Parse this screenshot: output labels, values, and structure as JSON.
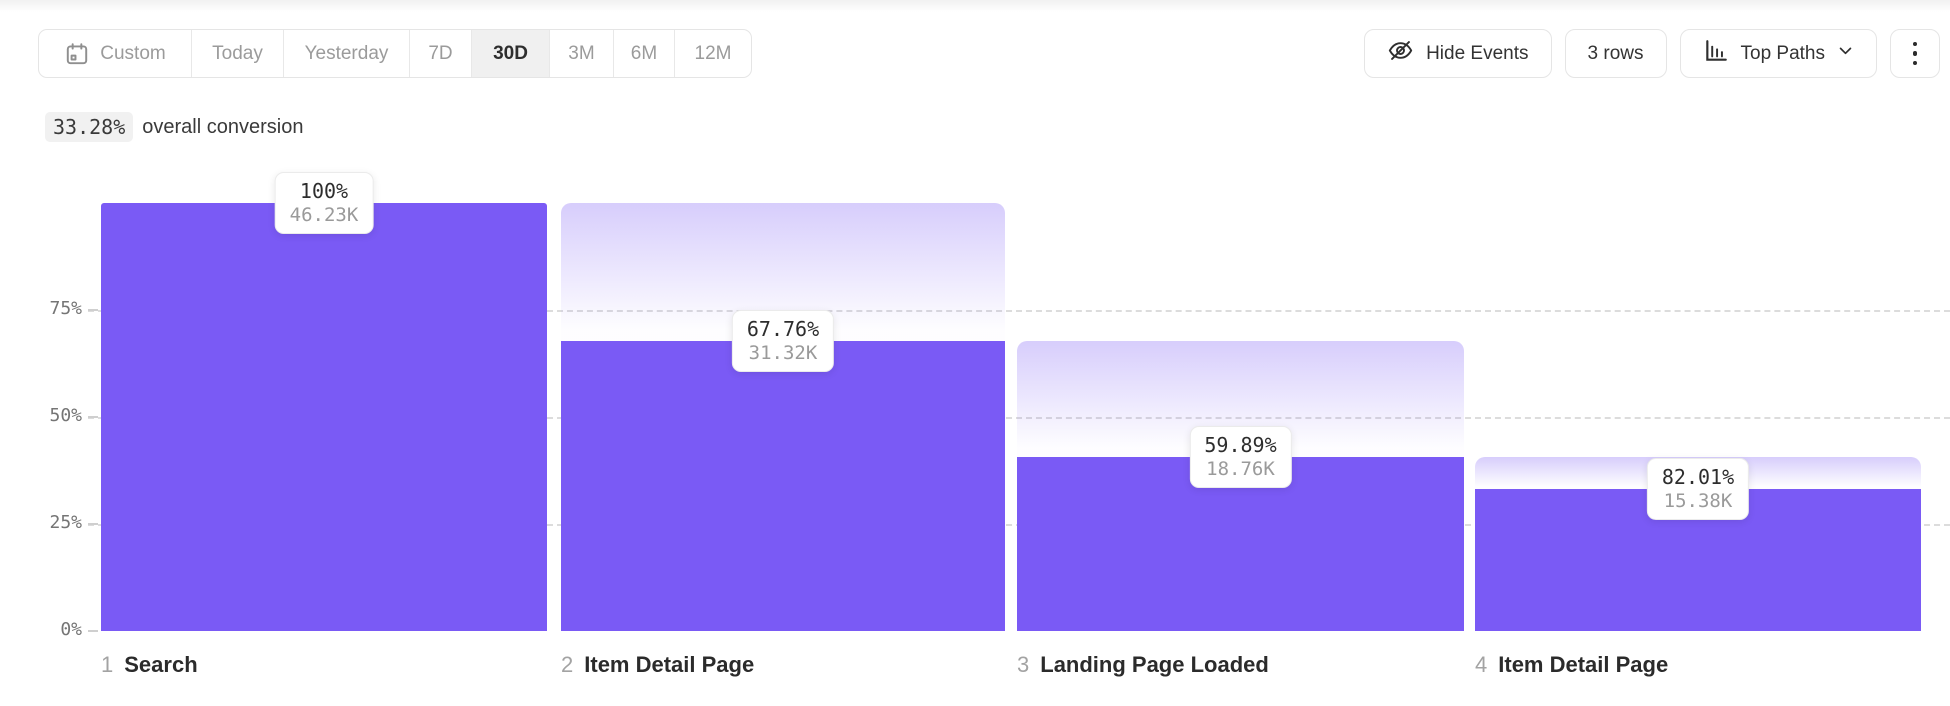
{
  "toolbar": {
    "date_ranges": [
      {
        "label": "Custom",
        "selected": false,
        "icon": "calendar-icon"
      },
      {
        "label": "Today",
        "selected": false
      },
      {
        "label": "Yesterday",
        "selected": false
      },
      {
        "label": "7D",
        "selected": false
      },
      {
        "label": "30D",
        "selected": true
      },
      {
        "label": "3M",
        "selected": false
      },
      {
        "label": "6M",
        "selected": false
      },
      {
        "label": "12M",
        "selected": false
      }
    ],
    "hide_events_label": "Hide Events",
    "rows_label": "3 rows",
    "top_paths_label": "Top Paths",
    "icons": [
      "calendar-icon",
      "eye-off-icon",
      "histogram-icon",
      "chevron-down-icon",
      "kebab-menu-icon"
    ]
  },
  "summary": {
    "value": "33.28%",
    "text": "overall conversion"
  },
  "chart_data": {
    "type": "bar",
    "subtype": "funnel",
    "title": "33.28% overall conversion",
    "categories": [
      "Search",
      "Item Detail Page",
      "Landing Page Loaded",
      "Item Detail Page"
    ],
    "series": [
      {
        "name": "count",
        "values": [
          46230,
          31320,
          18760,
          15380
        ]
      },
      {
        "name": "step_conversion_pct",
        "values": [
          100,
          67.76,
          59.89,
          82.01
        ]
      },
      {
        "name": "overall_conversion_pct",
        "values": [
          100,
          67.76,
          40.58,
          33.27
        ]
      }
    ],
    "steps": [
      {
        "index": "1",
        "name": "Search",
        "pct": "100%",
        "count": "46.23K",
        "overall": 100,
        "ghost_from": null
      },
      {
        "index": "2",
        "name": "Item Detail Page",
        "pct": "67.76%",
        "count": "31.32K",
        "overall": 67.76,
        "ghost_from": 100
      },
      {
        "index": "3",
        "name": "Landing Page Loaded",
        "pct": "59.89%",
        "count": "18.76K",
        "overall": 40.58,
        "ghost_from": 67.76
      },
      {
        "index": "4",
        "name": "Item Detail Page",
        "pct": "82.01%",
        "count": "15.38K",
        "overall": 33.27,
        "ghost_from": 40.58
      }
    ],
    "y_axis": {
      "ticks": [
        "75%",
        "50%",
        "25%",
        "0%"
      ],
      "range": [
        0,
        100
      ],
      "gridlines": "dashed"
    },
    "legend": "none",
    "colors": {
      "bar": "#7a5af5",
      "ghost_top": "rgba(122,90,245,0.30)",
      "gridline": "#dcdcdc"
    }
  }
}
